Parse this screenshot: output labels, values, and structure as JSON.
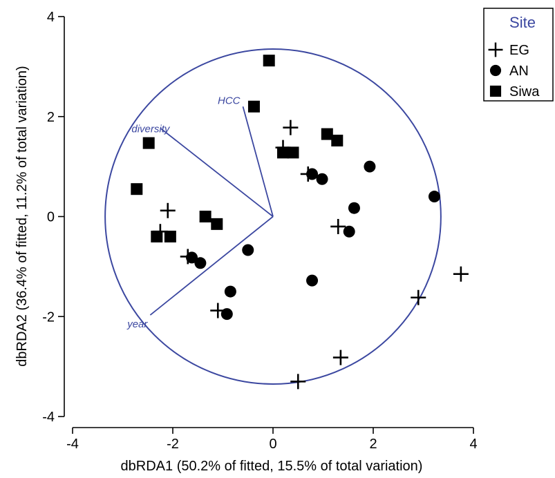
{
  "chart_data": {
    "type": "scatter",
    "title": "",
    "xlabel": "dbRDA1 (50.2% of fitted, 15.5% of total variation)",
    "ylabel": "dbRDA2 (36.4% of fitted, 11.2% of total variation)",
    "xlim": [
      -4,
      4
    ],
    "ylim": [
      -4,
      4
    ],
    "x_ticks": [
      -4,
      -2,
      0,
      2,
      4
    ],
    "y_ticks": [
      -4,
      -2,
      0,
      2,
      4
    ],
    "grid": false,
    "legend": {
      "title": "Site",
      "position": "top-right"
    },
    "series": [
      {
        "name": "EG",
        "marker": "plus",
        "color": "#000000",
        "points": [
          [
            0.35,
            1.78
          ],
          [
            0.2,
            1.38
          ],
          [
            0.7,
            0.85
          ],
          [
            1.3,
            -0.2
          ],
          [
            -2.1,
            0.12
          ],
          [
            -2.25,
            -0.3
          ],
          [
            -1.7,
            -0.8
          ],
          [
            -1.1,
            -1.88
          ],
          [
            0.5,
            -3.3
          ],
          [
            1.35,
            -2.82
          ],
          [
            2.9,
            -1.62
          ],
          [
            3.75,
            -1.15
          ]
        ]
      },
      {
        "name": "AN",
        "marker": "circle",
        "color": "#000000",
        "points": [
          [
            0.78,
            0.85
          ],
          [
            0.98,
            0.75
          ],
          [
            1.62,
            0.17
          ],
          [
            1.93,
            1.0
          ],
          [
            3.22,
            0.4
          ],
          [
            1.52,
            -0.3
          ],
          [
            0.78,
            -1.28
          ],
          [
            -0.5,
            -0.67
          ],
          [
            -1.62,
            -0.82
          ],
          [
            -1.45,
            -0.93
          ],
          [
            -0.85,
            -1.5
          ],
          [
            -0.92,
            -1.95
          ]
        ]
      },
      {
        "name": "Siwa",
        "marker": "square",
        "color": "#000000",
        "points": [
          [
            -0.08,
            3.12
          ],
          [
            -0.38,
            2.2
          ],
          [
            1.08,
            1.65
          ],
          [
            1.28,
            1.52
          ],
          [
            0.2,
            1.28
          ],
          [
            0.4,
            1.28
          ],
          [
            -2.48,
            1.47
          ],
          [
            -2.72,
            0.55
          ],
          [
            -1.35,
            0.0
          ],
          [
            -1.12,
            -0.15
          ],
          [
            -2.32,
            -0.4
          ],
          [
            -2.05,
            -0.4
          ]
        ]
      }
    ],
    "circle": {
      "center": [
        0,
        0
      ],
      "radius": 3.35
    },
    "vectors": [
      {
        "label": "HCC",
        "x": -0.6,
        "y": 2.2
      },
      {
        "label": "diversity",
        "x": -2.25,
        "y": 1.77
      },
      {
        "label": "year",
        "x": -2.45,
        "y": -1.97
      }
    ]
  }
}
